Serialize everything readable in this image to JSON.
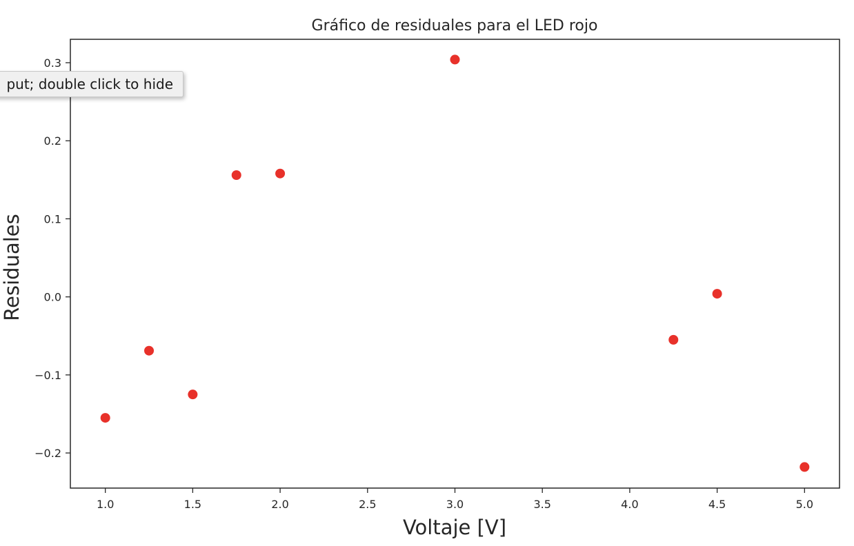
{
  "tooltip": {
    "text": "put; double click to hide"
  },
  "chart_data": {
    "type": "scatter",
    "title": "Gráfico de residuales para el LED rojo",
    "xlabel": "Voltaje [V]",
    "ylabel": "Residuales",
    "xlim": [
      0.8,
      5.2
    ],
    "ylim": [
      -0.245,
      0.33
    ],
    "xticks": [
      1.0,
      1.5,
      2.0,
      2.5,
      3.0,
      3.5,
      4.0,
      4.5,
      5.0
    ],
    "xtick_labels": [
      "1.0",
      "1.5",
      "2.0",
      "2.5",
      "3.0",
      "3.5",
      "4.0",
      "4.5",
      "5.0"
    ],
    "yticks": [
      -0.2,
      -0.1,
      0.0,
      0.1,
      0.2,
      0.3
    ],
    "ytick_labels": [
      "−0.2",
      "−0.1",
      "0.0",
      "0.1",
      "0.2",
      "0.3"
    ],
    "grid": false,
    "marker_color": "#e8312a",
    "x": [
      1.0,
      1.25,
      1.5,
      1.75,
      2.0,
      3.0,
      4.25,
      4.5,
      5.0
    ],
    "y": [
      -0.155,
      -0.069,
      -0.125,
      0.156,
      0.158,
      0.304,
      -0.055,
      0.004,
      -0.218
    ]
  }
}
